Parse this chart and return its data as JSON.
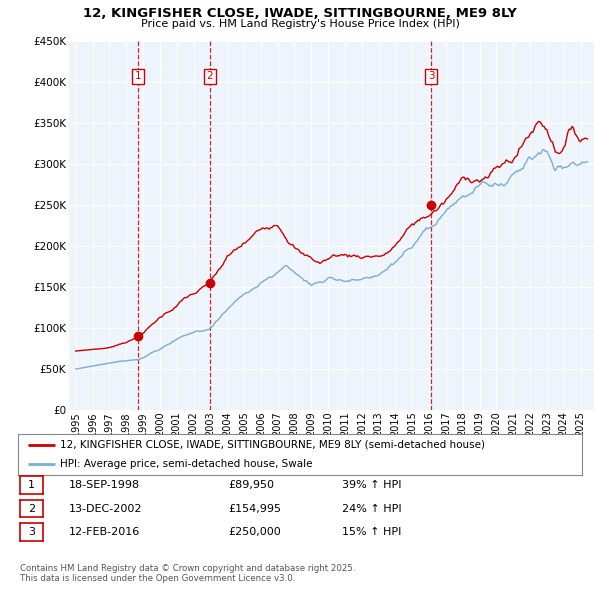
{
  "title": "12, KINGFISHER CLOSE, IWADE, SITTINGBOURNE, ME9 8LY",
  "subtitle": "Price paid vs. HM Land Registry's House Price Index (HPI)",
  "ylim": [
    0,
    450000
  ],
  "yticks": [
    0,
    50000,
    100000,
    150000,
    200000,
    250000,
    300000,
    350000,
    400000,
    450000
  ],
  "ytick_labels": [
    "£0",
    "£50K",
    "£100K",
    "£150K",
    "£200K",
    "£250K",
    "£300K",
    "£350K",
    "£400K",
    "£450K"
  ],
  "xlim_start": 1994.6,
  "xlim_end": 2025.8,
  "sale_color": "#cc0000",
  "hpi_color": "#7aadd4",
  "vline_color": "#cc0000",
  "shade_color": "#ddeeff",
  "sale_label": "12, KINGFISHER CLOSE, IWADE, SITTINGBOURNE, ME9 8LY (semi-detached house)",
  "hpi_label": "HPI: Average price, semi-detached house, Swale",
  "sales": [
    {
      "date": 1998.72,
      "price": 89950,
      "label": "1"
    },
    {
      "date": 2002.96,
      "price": 154995,
      "label": "2"
    },
    {
      "date": 2016.12,
      "price": 250000,
      "label": "3"
    }
  ],
  "table_rows": [
    {
      "num": "1",
      "date": "18-SEP-1998",
      "price": "£89,950",
      "hpi": "39% ↑ HPI"
    },
    {
      "num": "2",
      "date": "13-DEC-2002",
      "price": "£154,995",
      "hpi": "24% ↑ HPI"
    },
    {
      "num": "3",
      "date": "12-FEB-2016",
      "price": "£250,000",
      "hpi": "15% ↑ HPI"
    }
  ],
  "footer": "Contains HM Land Registry data © Crown copyright and database right 2025.\nThis data is licensed under the Open Government Licence v3.0.",
  "background_color": "#ffffff",
  "plot_bg_color": "#eef4fb",
  "grid_color": "#ffffff"
}
